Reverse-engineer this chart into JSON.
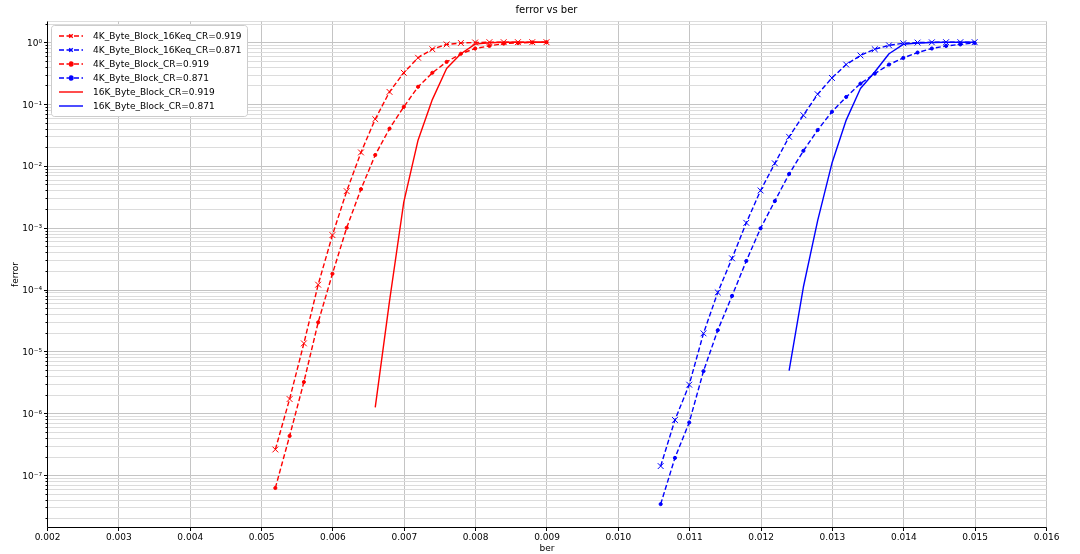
{
  "chart_data": {
    "type": "line",
    "title": "ferror vs ber",
    "xlabel": "ber",
    "ylabel": "ferror",
    "log": true,
    "grid": true,
    "legend": "top left",
    "xlim": [
      0.002,
      0.016
    ],
    "xticks": [
      0.002,
      0.003,
      0.004,
      0.005,
      0.006,
      0.007,
      0.008,
      0.009,
      {
        "value": 0.01,
        "label": "0.010"
      },
      0.011,
      0.012,
      0.013,
      0.014,
      0.015,
      0.016
    ],
    "ylim": [
      1.45e-08,
      2.2
    ],
    "yticks": [
      {
        "value": 2e-08,
        "label": null
      },
      {
        "value": 3e-08,
        "label": null
      },
      {
        "value": 4e-08,
        "label": null
      },
      {
        "value": 5e-08,
        "label": null
      },
      {
        "value": 6e-08,
        "label": null
      },
      {
        "value": 7e-08,
        "label": null
      },
      {
        "value": 8e-08,
        "label": null
      },
      {
        "value": 9e-08,
        "label": null
      },
      {
        "value": 1e-07,
        "label": "10⁻⁷"
      },
      {
        "value": 2e-07,
        "label": null
      },
      {
        "value": 3e-07,
        "label": null
      },
      {
        "value": 4e-07,
        "label": null
      },
      {
        "value": 5e-07,
        "label": null
      },
      {
        "value": 6e-07,
        "label": null
      },
      {
        "value": 7e-07,
        "label": null
      },
      {
        "value": 8e-07,
        "label": null
      },
      {
        "value": 9e-07,
        "label": null
      },
      {
        "value": 1e-06,
        "label": "10⁻⁶"
      },
      {
        "value": 2e-06,
        "label": null
      },
      {
        "value": 3e-06,
        "label": null
      },
      {
        "value": 4e-06,
        "label": null
      },
      {
        "value": 5e-06,
        "label": null
      },
      {
        "value": 6e-06,
        "label": null
      },
      {
        "value": 7e-06,
        "label": null
      },
      {
        "value": 8e-06,
        "label": null
      },
      {
        "value": 9e-06,
        "label": null
      },
      {
        "value": 1e-05,
        "label": "10⁻⁵"
      },
      {
        "value": 2e-05,
        "label": null
      },
      {
        "value": 3e-05,
        "label": null
      },
      {
        "value": 4e-05,
        "label": null
      },
      {
        "value": 5e-05,
        "label": null
      },
      {
        "value": 6e-05,
        "label": null
      },
      {
        "value": 7e-05,
        "label": null
      },
      {
        "value": 8e-05,
        "label": null
      },
      {
        "value": 9e-05,
        "label": null
      },
      {
        "value": 0.0001,
        "label": "10⁻⁴"
      },
      {
        "value": 0.0002,
        "label": null
      },
      {
        "value": 0.0003,
        "label": null
      },
      {
        "value": 0.0004,
        "label": null
      },
      {
        "value": 0.0005,
        "label": null
      },
      {
        "value": 0.0006,
        "label": null
      },
      {
        "value": 0.0007,
        "label": null
      },
      {
        "value": 0.0008,
        "label": null
      },
      {
        "value": 0.0009,
        "label": null
      },
      {
        "value": 0.001,
        "label": "10⁻³"
      },
      {
        "value": 0.002,
        "label": null
      },
      {
        "value": 0.003,
        "label": null
      },
      {
        "value": 0.004,
        "label": null
      },
      {
        "value": 0.005,
        "label": null
      },
      {
        "value": 0.006,
        "label": null
      },
      {
        "value": 0.007,
        "label": null
      },
      {
        "value": 0.008,
        "label": null
      },
      {
        "value": 0.009,
        "label": null
      },
      {
        "value": 0.01,
        "label": "10⁻²"
      },
      {
        "value": 0.02,
        "label": null
      },
      {
        "value": 0.03,
        "label": null
      },
      {
        "value": 0.04,
        "label": null
      },
      {
        "value": 0.05,
        "label": null
      },
      {
        "value": 0.06,
        "label": null
      },
      {
        "value": 0.07,
        "label": null
      },
      {
        "value": 0.08,
        "label": null
      },
      {
        "value": 0.09,
        "label": null
      },
      {
        "value": 0.1,
        "label": "10⁻¹"
      },
      {
        "value": 0.2,
        "label": null
      },
      {
        "value": 0.3,
        "label": null
      },
      {
        "value": 0.4,
        "label": null
      },
      {
        "value": 0.5,
        "label": null
      },
      {
        "value": 0.6,
        "label": null
      },
      {
        "value": 0.7,
        "label": null
      },
      {
        "value": 0.8,
        "label": null
      },
      {
        "value": 0.9,
        "label": null
      },
      {
        "value": 1,
        "label": "10⁰"
      },
      {
        "value": 2,
        "label": null
      }
    ],
    "series": [
      {
        "name": "4K_Byte_Block_16Keq_CR=0.919",
        "color": "#ff0000",
        "line_style": "dashed",
        "marker": "cross",
        "x": [
          0.0052,
          0.0054,
          0.0056,
          0.0058,
          0.006,
          0.0062,
          0.0064,
          0.0066,
          0.0068,
          0.007,
          0.0072,
          0.0074,
          0.0076,
          0.0078,
          0.008,
          0.0082,
          0.0084,
          0.0086,
          0.0088,
          0.009
        ],
        "values": [
          2.6e-07,
          1.7e-06,
          1.35e-05,
          0.00012,
          0.00076,
          0.0039,
          0.0165,
          0.057,
          0.157,
          0.32,
          0.56,
          0.77,
          0.92,
          0.97,
          0.99,
          1.0,
          1.0,
          1.0,
          1.0,
          1.0
        ]
      },
      {
        "name": "4K_Byte_Block_16Keq_CR=0.871",
        "color": "#0000ff",
        "line_style": "dashed",
        "marker": "cross",
        "x": [
          0.0106,
          0.0108,
          0.011,
          0.0112,
          0.0114,
          0.0116,
          0.0118,
          0.012,
          0.0122,
          0.0124,
          0.0126,
          0.0128,
          0.013,
          0.0132,
          0.0134,
          0.0136,
          0.0138,
          0.014,
          0.0142,
          0.0144,
          0.0146,
          0.0148,
          0.015
        ],
        "values": [
          1.4e-07,
          7.8e-07,
          2.9e-06,
          1.96e-05,
          9e-05,
          0.00032,
          0.0012,
          0.004,
          0.011,
          0.0295,
          0.066,
          0.144,
          0.264,
          0.435,
          0.61,
          0.77,
          0.89,
          0.96,
          0.985,
          0.995,
          1.0,
          1.0,
          1.0
        ]
      },
      {
        "name": "4K_Byte_Block_CR=0.919",
        "color": "#ff0000",
        "line_style": "dashed",
        "marker": "circle",
        "x": [
          0.0052,
          0.0054,
          0.0056,
          0.0058,
          0.006,
          0.0062,
          0.0064,
          0.0066,
          0.0068,
          0.007,
          0.0072,
          0.0074,
          0.0076,
          0.0078,
          0.008,
          0.0082,
          0.0084,
          0.0086,
          0.0088,
          0.009
        ],
        "values": [
          6.2e-08,
          4.3e-07,
          3.2e-06,
          2.95e-05,
          0.00018,
          0.001,
          0.0042,
          0.015,
          0.04,
          0.09,
          0.19,
          0.32,
          0.48,
          0.65,
          0.79,
          0.87,
          0.95,
          0.97,
          0.99,
          1.0
        ]
      },
      {
        "name": "4K_Byte_Block_CR=0.871",
        "color": "#0000ff",
        "line_style": "dashed",
        "marker": "circle",
        "x": [
          0.0106,
          0.0108,
          0.011,
          0.0112,
          0.0114,
          0.0116,
          0.0118,
          0.012,
          0.0122,
          0.0124,
          0.0126,
          0.0128,
          0.013,
          0.0132,
          0.0134,
          0.0136,
          0.0138,
          0.014,
          0.0142,
          0.0144,
          0.0146,
          0.0148,
          0.015
        ],
        "values": [
          3.4e-08,
          1.9e-07,
          7.1e-07,
          4.8e-06,
          2.2e-05,
          7.9e-05,
          0.00029,
          0.00098,
          0.0027,
          0.0074,
          0.0175,
          0.038,
          0.075,
          0.13,
          0.214,
          0.31,
          0.435,
          0.556,
          0.68,
          0.79,
          0.87,
          0.92,
          0.97
        ]
      },
      {
        "name": "16K_Byte_Block_CR=0.919",
        "color": "#ff0000",
        "line_style": "solid",
        "x": [
          0.0066,
          0.0068,
          0.007,
          0.0072,
          0.0074,
          0.0076,
          0.0078,
          0.008,
          0.0082,
          0.0084,
          0.0086,
          0.0088,
          0.009
        ],
        "values": [
          1.25e-06,
          6.5e-05,
          0.0026,
          0.026,
          0.118,
          0.375,
          0.65,
          0.93,
          0.98,
          0.995,
          1.0,
          1.0,
          1.0
        ]
      },
      {
        "name": "16K_Byte_Block_CR=0.871",
        "color": "#0000ff",
        "line_style": "solid",
        "x": [
          0.0124,
          0.0126,
          0.0128,
          0.013,
          0.0132,
          0.0134,
          0.0136,
          0.0138,
          0.014,
          0.0142,
          0.0144,
          0.0146,
          0.0148,
          0.015
        ],
        "values": [
          4.9e-06,
          0.00011,
          0.0013,
          0.011,
          0.055,
          0.178,
          0.33,
          0.65,
          0.92,
          0.97,
          0.99,
          1.0,
          1.0,
          1.0
        ]
      }
    ]
  }
}
